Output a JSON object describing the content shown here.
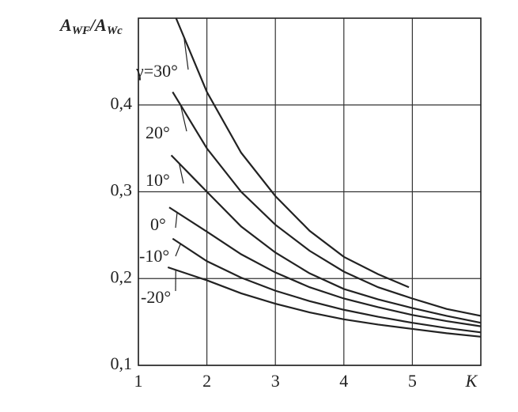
{
  "chart_data": {
    "type": "line",
    "ylabel": [
      "A",
      "WF",
      "/A",
      "Wc"
    ],
    "xlabel": "K",
    "xlim": [
      1,
      6
    ],
    "ylim": [
      0.1,
      0.5
    ],
    "xticks": [
      1,
      2,
      3,
      4,
      5
    ],
    "yticks": [
      {
        "value": 0.1,
        "label": "0,1"
      },
      {
        "value": 0.2,
        "label": "0,2"
      },
      {
        "value": 0.3,
        "label": "0,3"
      },
      {
        "value": 0.4,
        "label": "0,4"
      }
    ],
    "grid": true,
    "series": [
      {
        "name": "γ=30°",
        "color": "#222",
        "x": [
          1.55,
          2,
          2.5,
          3,
          3.5,
          4,
          4.5,
          4.95
        ],
        "values": [
          0.5,
          0.415,
          0.345,
          0.295,
          0.255,
          0.225,
          0.205,
          0.19
        ]
      },
      {
        "name": "20°",
        "color": "#222",
        "x": [
          1.5,
          2,
          2.5,
          3,
          3.5,
          4,
          4.5,
          5,
          5.5,
          6
        ],
        "values": [
          0.415,
          0.35,
          0.3,
          0.262,
          0.232,
          0.208,
          0.19,
          0.177,
          0.165,
          0.157
        ]
      },
      {
        "name": "10°",
        "color": "#222",
        "x": [
          1.48,
          2,
          2.5,
          3,
          3.5,
          4,
          4.5,
          5,
          5.5,
          6
        ],
        "values": [
          0.342,
          0.3,
          0.26,
          0.23,
          0.206,
          0.188,
          0.176,
          0.166,
          0.157,
          0.149
        ]
      },
      {
        "name": "0°",
        "color": "#222",
        "x": [
          1.45,
          2,
          2.5,
          3,
          3.5,
          4,
          4.5,
          5,
          5.5,
          6
        ],
        "values": [
          0.282,
          0.254,
          0.228,
          0.207,
          0.19,
          0.177,
          0.167,
          0.158,
          0.151,
          0.145
        ]
      },
      {
        "name": "-10°",
        "color": "#222",
        "x": [
          1.5,
          2,
          2.5,
          3,
          3.5,
          4,
          4.5,
          5,
          5.5,
          6
        ],
        "values": [
          0.246,
          0.22,
          0.201,
          0.186,
          0.174,
          0.164,
          0.156,
          0.149,
          0.143,
          0.138
        ]
      },
      {
        "name": "-20°",
        "color": "#222",
        "x": [
          1.43,
          2,
          2.5,
          3,
          3.5,
          4,
          4.5,
          5,
          5.5,
          6
        ],
        "values": [
          0.213,
          0.198,
          0.183,
          0.171,
          0.161,
          0.153,
          0.147,
          0.142,
          0.137,
          0.133
        ]
      }
    ]
  }
}
